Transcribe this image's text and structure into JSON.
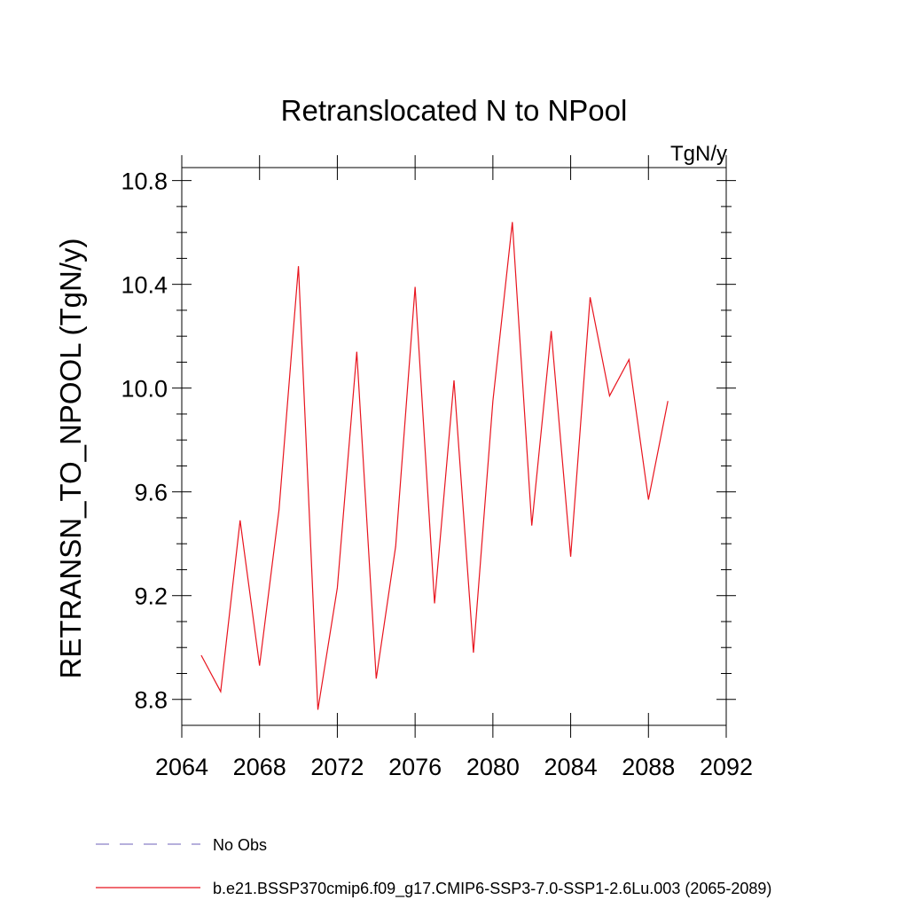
{
  "chart_data": {
    "type": "line",
    "title": "Retranslocated N to NPool",
    "units": "TgN/y",
    "ylabel": "RETRANSN_TO_NPOOL  (TgN/y)",
    "xlabel": "",
    "xlim": [
      2064,
      2092
    ],
    "ylim": [
      8.7,
      10.85
    ],
    "xticks": [
      2064,
      2068,
      2072,
      2076,
      2080,
      2084,
      2088,
      2092
    ],
    "xtick_labels": [
      "2064",
      "2068",
      "2072",
      "2076",
      "2080",
      "2084",
      "2088",
      "2092"
    ],
    "yticks": [
      8.8,
      9.2,
      9.6,
      10.0,
      10.4,
      10.8
    ],
    "ytick_labels": [
      "8.8",
      "9.2",
      "9.6",
      "10.0",
      "10.4",
      "10.8"
    ],
    "grid": false,
    "legend_position": "bottom",
    "series": [
      {
        "name": "b.e21.BSSP370cmip6.f09_g17.CMIP6-SSP3-7.0-SSP1-2.6Lu.003 (2065-2089)",
        "color": "#e8141e",
        "style": "solid",
        "x": [
          2065,
          2066,
          2067,
          2068,
          2069,
          2070,
          2071,
          2072,
          2073,
          2074,
          2075,
          2076,
          2077,
          2078,
          2079,
          2080,
          2081,
          2082,
          2083,
          2084,
          2085,
          2086,
          2087,
          2088,
          2089
        ],
        "y": [
          8.97,
          8.83,
          9.49,
          8.93,
          9.53,
          10.47,
          8.76,
          9.23,
          10.14,
          8.88,
          9.39,
          10.39,
          9.17,
          10.03,
          8.98,
          9.95,
          10.64,
          9.47,
          10.22,
          9.35,
          10.35,
          9.97,
          10.11,
          9.57,
          9.95
        ]
      },
      {
        "name": "No Obs",
        "color": "#8a80c8",
        "style": "dashed",
        "x": [],
        "y": []
      }
    ]
  }
}
